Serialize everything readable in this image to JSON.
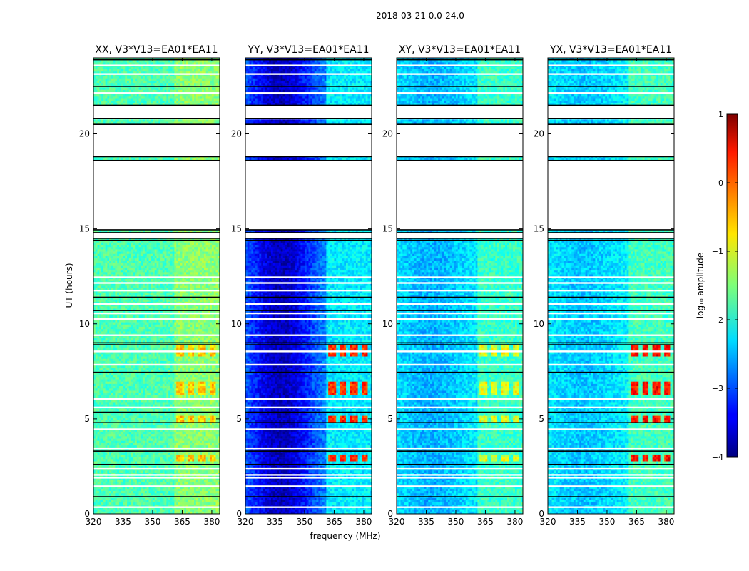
{
  "figure": {
    "suptitle": "2018-03-21 0.0-24.0",
    "xlabel": "frequency (MHz)",
    "ylabel": "UT (hours)"
  },
  "chart_data": {
    "type": "heatmap",
    "title": "2018-03-21 0.0-24.0",
    "xlabel": "frequency (MHz)",
    "ylabel": "UT (hours)",
    "xlim": [
      320,
      384
    ],
    "ylim": [
      0,
      24
    ],
    "xticks": [
      320,
      335,
      350,
      365,
      380
    ],
    "yticks": [
      0,
      5,
      10,
      15,
      20
    ],
    "panels": [
      {
        "title": "XX, V3*V13=EA01*EA11",
        "base": -1.75,
        "lowcut": 0,
        "rfi": -0.6
      },
      {
        "title": "YY, V3*V13=EA01*EA11",
        "base": -2.5,
        "lowcut": 1.2,
        "rfi": 0.15
      },
      {
        "title": "XY, V3*V13=EA01*EA11",
        "base": -2.15,
        "lowcut": 0.35,
        "rfi": -1.0
      },
      {
        "title": "YX, V3*V13=EA01*EA11",
        "base": -2.1,
        "lowcut": 0.3,
        "rfi": 0.3
      }
    ],
    "rfi_freq_bands_mhz": [
      [
        362,
        366
      ],
      [
        368,
        371
      ],
      [
        373,
        377
      ],
      [
        379,
        382
      ]
    ],
    "rfi_time_bands_hours": [
      [
        2.8,
        3.1
      ],
      [
        4.8,
        5.2
      ],
      [
        6.2,
        7.0
      ],
      [
        8.3,
        8.9
      ]
    ],
    "data_gaps_hours": [
      [
        14.5,
        14.8
      ],
      [
        14.95,
        18.6
      ],
      [
        18.8,
        20.5
      ],
      [
        20.8,
        21.5
      ]
    ],
    "colorbar": {
      "label": "log₁₀ amplitude",
      "range": [
        -4,
        1
      ],
      "ticks": [
        1,
        0,
        -1,
        -2,
        -3,
        -4
      ],
      "tick_labels": [
        "1",
        "0",
        "−1",
        "−2",
        "−3",
        "−4"
      ],
      "colormap": "jet"
    }
  }
}
